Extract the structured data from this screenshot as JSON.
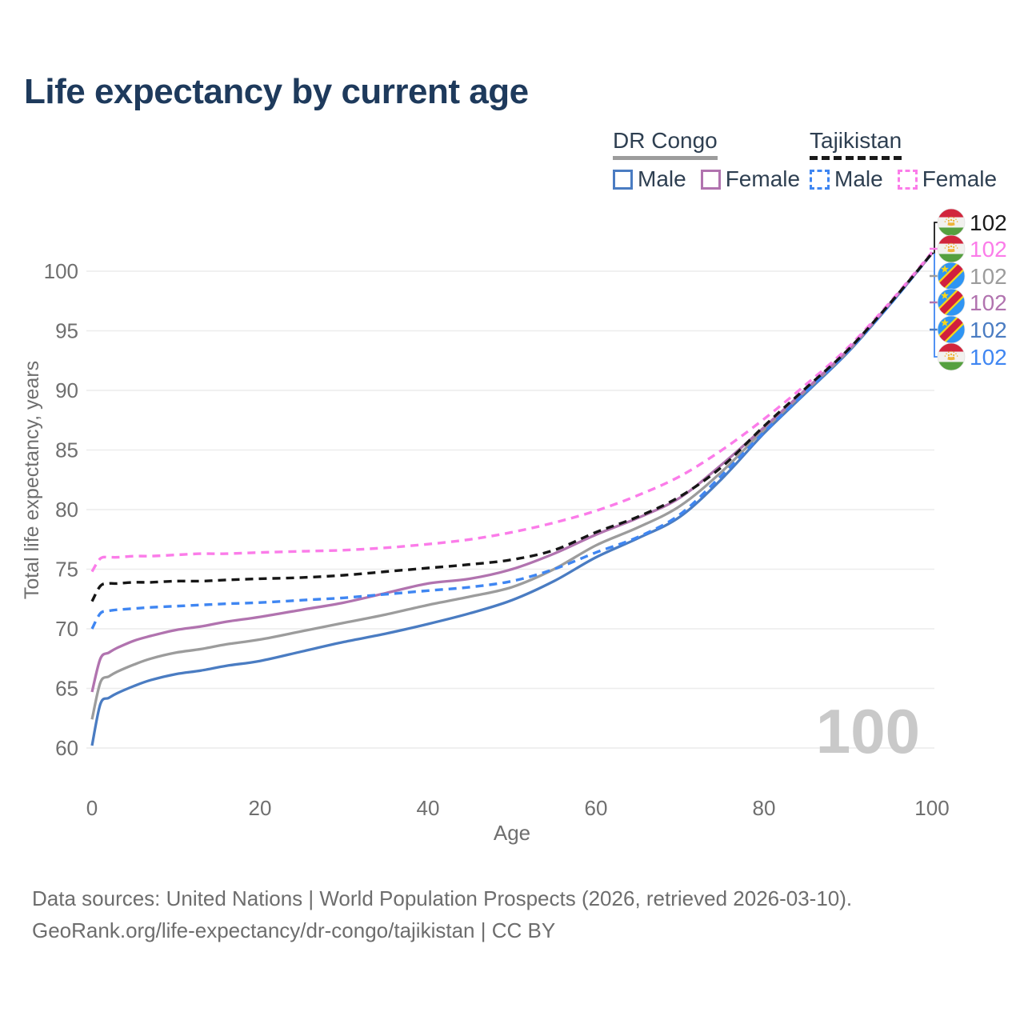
{
  "title": "Life expectancy by current age",
  "legend": {
    "groups": [
      {
        "name": "DR Congo",
        "line_style": "solid",
        "underline_color": "#9c9c9c",
        "items": [
          {
            "label": "Male",
            "color": "#4a7cc2"
          },
          {
            "label": "Female",
            "color": "#b173af"
          }
        ]
      },
      {
        "name": "Tajikistan",
        "line_style": "dashed",
        "underline_color": "#1a1a1a",
        "items": [
          {
            "label": "Male",
            "color": "#3f86f2"
          },
          {
            "label": "Female",
            "color": "#fb7ce9"
          }
        ]
      }
    ]
  },
  "chart_data": {
    "type": "line",
    "title": "Life expectancy by current age",
    "xlabel": "Age",
    "ylabel": "Total life expectancy, years",
    "xlim": [
      0,
      100
    ],
    "ylim": [
      58,
      103
    ],
    "xticks": [
      0,
      20,
      40,
      60,
      80,
      100
    ],
    "yticks": [
      60,
      65,
      70,
      75,
      80,
      85,
      90,
      95,
      100
    ],
    "grid": "horizontal-only",
    "legend_position": "top-right",
    "watermark": "100",
    "x": [
      0,
      1,
      2,
      3,
      5,
      7,
      10,
      13,
      16,
      20,
      25,
      30,
      35,
      40,
      45,
      50,
      55,
      60,
      65,
      70,
      75,
      80,
      85,
      90,
      95,
      100
    ],
    "series": [
      {
        "id": "drcongo-male",
        "country": "DR Congo",
        "group": "Male",
        "color": "#4a7cc2",
        "dash": false,
        "values": [
          60.2,
          63.7,
          64.2,
          64.6,
          65.2,
          65.7,
          66.2,
          66.5,
          66.9,
          67.3,
          68.1,
          68.9,
          69.6,
          70.4,
          71.3,
          72.4,
          74.0,
          76.0,
          77.6,
          79.4,
          82.6,
          86.4,
          89.8,
          93.2,
          97.2,
          101.5
        ]
      },
      {
        "id": "drcongo-all",
        "country": "DR Congo",
        "group": "All",
        "color": "#9c9c9c",
        "dash": false,
        "values": [
          62.4,
          65.5,
          66.0,
          66.4,
          67.0,
          67.5,
          68.0,
          68.3,
          68.7,
          69.1,
          69.8,
          70.5,
          71.2,
          72.0,
          72.7,
          73.5,
          75.0,
          77.0,
          78.5,
          80.3,
          83.2,
          86.7,
          90.0,
          93.3,
          97.3,
          101.5
        ]
      },
      {
        "id": "drcongo-female",
        "country": "DR Congo",
        "group": "Female",
        "color": "#b173af",
        "dash": false,
        "values": [
          64.7,
          67.5,
          68.0,
          68.4,
          69.0,
          69.4,
          69.9,
          70.2,
          70.6,
          71.0,
          71.6,
          72.2,
          73.0,
          73.8,
          74.2,
          75.0,
          76.3,
          77.9,
          79.3,
          81.0,
          83.8,
          86.9,
          90.1,
          93.4,
          97.3,
          101.5
        ]
      },
      {
        "id": "tajikistan-male",
        "country": "Tajikistan",
        "group": "Male",
        "color": "#3f86f2",
        "dash": true,
        "values": [
          70.0,
          71.3,
          71.5,
          71.6,
          71.7,
          71.8,
          71.9,
          72.0,
          72.1,
          72.2,
          72.4,
          72.6,
          72.9,
          73.2,
          73.5,
          74.0,
          75.0,
          76.4,
          77.7,
          79.6,
          82.9,
          86.5,
          89.9,
          93.3,
          97.2,
          101.5
        ]
      },
      {
        "id": "tajikistan-female",
        "country": "Tajikistan",
        "group": "Female",
        "color": "#fb7ce9",
        "dash": true,
        "values": [
          74.8,
          75.9,
          76.0,
          76.0,
          76.1,
          76.1,
          76.2,
          76.3,
          76.3,
          76.4,
          76.5,
          76.6,
          76.8,
          77.1,
          77.5,
          78.1,
          78.9,
          79.9,
          81.2,
          82.8,
          85.0,
          87.6,
          90.5,
          93.6,
          97.4,
          101.6
        ]
      },
      {
        "id": "tajikistan-all",
        "country": "Tajikistan",
        "group": "All",
        "color": "#161616",
        "dash": true,
        "values": [
          72.3,
          73.6,
          73.8,
          73.8,
          73.9,
          73.9,
          74.0,
          74.0,
          74.1,
          74.2,
          74.3,
          74.5,
          74.8,
          75.1,
          75.4,
          75.8,
          76.6,
          78.1,
          79.4,
          81.1,
          83.6,
          87.0,
          90.2,
          93.4,
          97.3,
          101.5
        ]
      }
    ],
    "end_labels": [
      {
        "flag": "tajikistan",
        "value": "102",
        "color": "#1a1a1a"
      },
      {
        "flag": "tajikistan",
        "value": "102",
        "color": "#fb7ce9"
      },
      {
        "flag": "dr-congo",
        "value": "102",
        "color": "#9c9c9c"
      },
      {
        "flag": "dr-congo",
        "value": "102",
        "color": "#b173af"
      },
      {
        "flag": "dr-congo",
        "value": "102",
        "color": "#4a7cc2"
      },
      {
        "flag": "tajikistan",
        "value": "102",
        "color": "#3f86f2"
      }
    ]
  },
  "footer": {
    "line1": "Data sources: United Nations | World Population Prospects (2026, retrieved 2026-03-10).",
    "line2": "GeoRank.org/life-expectancy/dr-congo/tajikistan | CC BY"
  }
}
